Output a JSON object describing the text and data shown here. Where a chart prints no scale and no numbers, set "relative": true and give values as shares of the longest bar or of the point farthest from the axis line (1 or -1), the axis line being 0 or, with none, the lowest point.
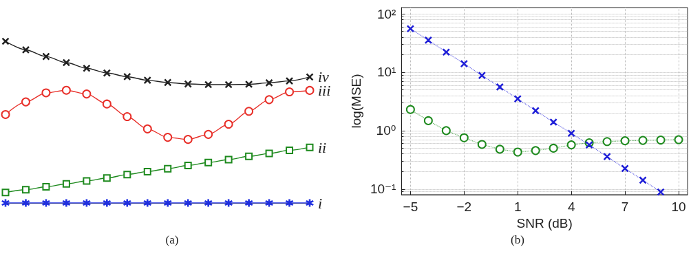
{
  "chart_data": [
    {
      "type": "line",
      "relative": true,
      "categories": [
        null,
        null,
        null,
        null,
        null,
        null,
        null,
        null,
        null,
        null,
        null,
        null,
        null,
        null,
        null,
        null
      ],
      "annotations": [
        "(a)"
      ],
      "legend": false,
      "grid": false,
      "series": [
        {
          "name": "iv",
          "color": "#222222",
          "marker": "cross",
          "values": [
            1.0,
            0.947,
            0.906,
            0.868,
            0.833,
            0.804,
            0.781,
            0.759,
            0.745,
            0.736,
            0.732,
            0.732,
            0.734,
            0.743,
            0.755,
            0.779
          ]
        },
        {
          "name": "iii",
          "color": "#e8302a",
          "marker": "circle",
          "values": [
            0.547,
            0.625,
            0.681,
            0.697,
            0.674,
            0.612,
            0.534,
            0.458,
            0.406,
            0.393,
            0.424,
            0.487,
            0.567,
            0.639,
            0.687,
            0.696
          ]
        },
        {
          "name": "ii",
          "color": "#1e8a1e",
          "marker": "square",
          "values": [
            0.065,
            0.082,
            0.1,
            0.118,
            0.136,
            0.154,
            0.176,
            0.194,
            0.212,
            0.232,
            0.25,
            0.268,
            0.288,
            0.306,
            0.326,
            0.344
          ]
        },
        {
          "name": "i",
          "color": "#1f2fe0",
          "marker": "star",
          "values": [
            0,
            0,
            0,
            0,
            0,
            0,
            0,
            0,
            0,
            0,
            0,
            0,
            0,
            0,
            0,
            0
          ]
        }
      ]
    },
    {
      "type": "line",
      "xlabel": "SNR (dB)",
      "ylabel": "log(MSE)",
      "annotations": [
        "(b)"
      ],
      "log": "y",
      "grid": true,
      "legend": false,
      "line_style": "dotted",
      "xlim": [
        -5.5,
        10.5
      ],
      "xticks": [
        -5,
        -2,
        1,
        4,
        7,
        10
      ],
      "ylim": [
        0.08,
        128
      ],
      "yticks": [
        {
          "value": 0.1,
          "label": "10⁻¹"
        },
        {
          "value": 1,
          "label": "10⁰"
        },
        {
          "value": 10,
          "label": "10¹"
        },
        {
          "value": 100,
          "label": "10²"
        }
      ],
      "series": [
        {
          "color": "#1f1fd8",
          "marker": "cross",
          "x": [
            -5,
            -4,
            -3,
            -2,
            -1,
            0,
            1,
            2,
            3,
            4,
            5,
            6,
            7,
            8,
            9
          ],
          "values": [
            55.6,
            35.4,
            22.1,
            14.0,
            8.8,
            5.6,
            3.5,
            2.2,
            1.4,
            0.9,
            0.57,
            0.36,
            0.225,
            0.142,
            0.089
          ]
        },
        {
          "color": "#1e8a1e",
          "marker": "circle",
          "x": [
            -5,
            -4,
            -3,
            -2,
            -1,
            0,
            1,
            2,
            3,
            4,
            5,
            6,
            7,
            8,
            9,
            10
          ],
          "values": [
            2.3,
            1.48,
            1.0,
            0.755,
            0.58,
            0.48,
            0.43,
            0.456,
            0.5,
            0.57,
            0.62,
            0.65,
            0.67,
            0.68,
            0.69,
            0.7
          ]
        }
      ]
    }
  ]
}
